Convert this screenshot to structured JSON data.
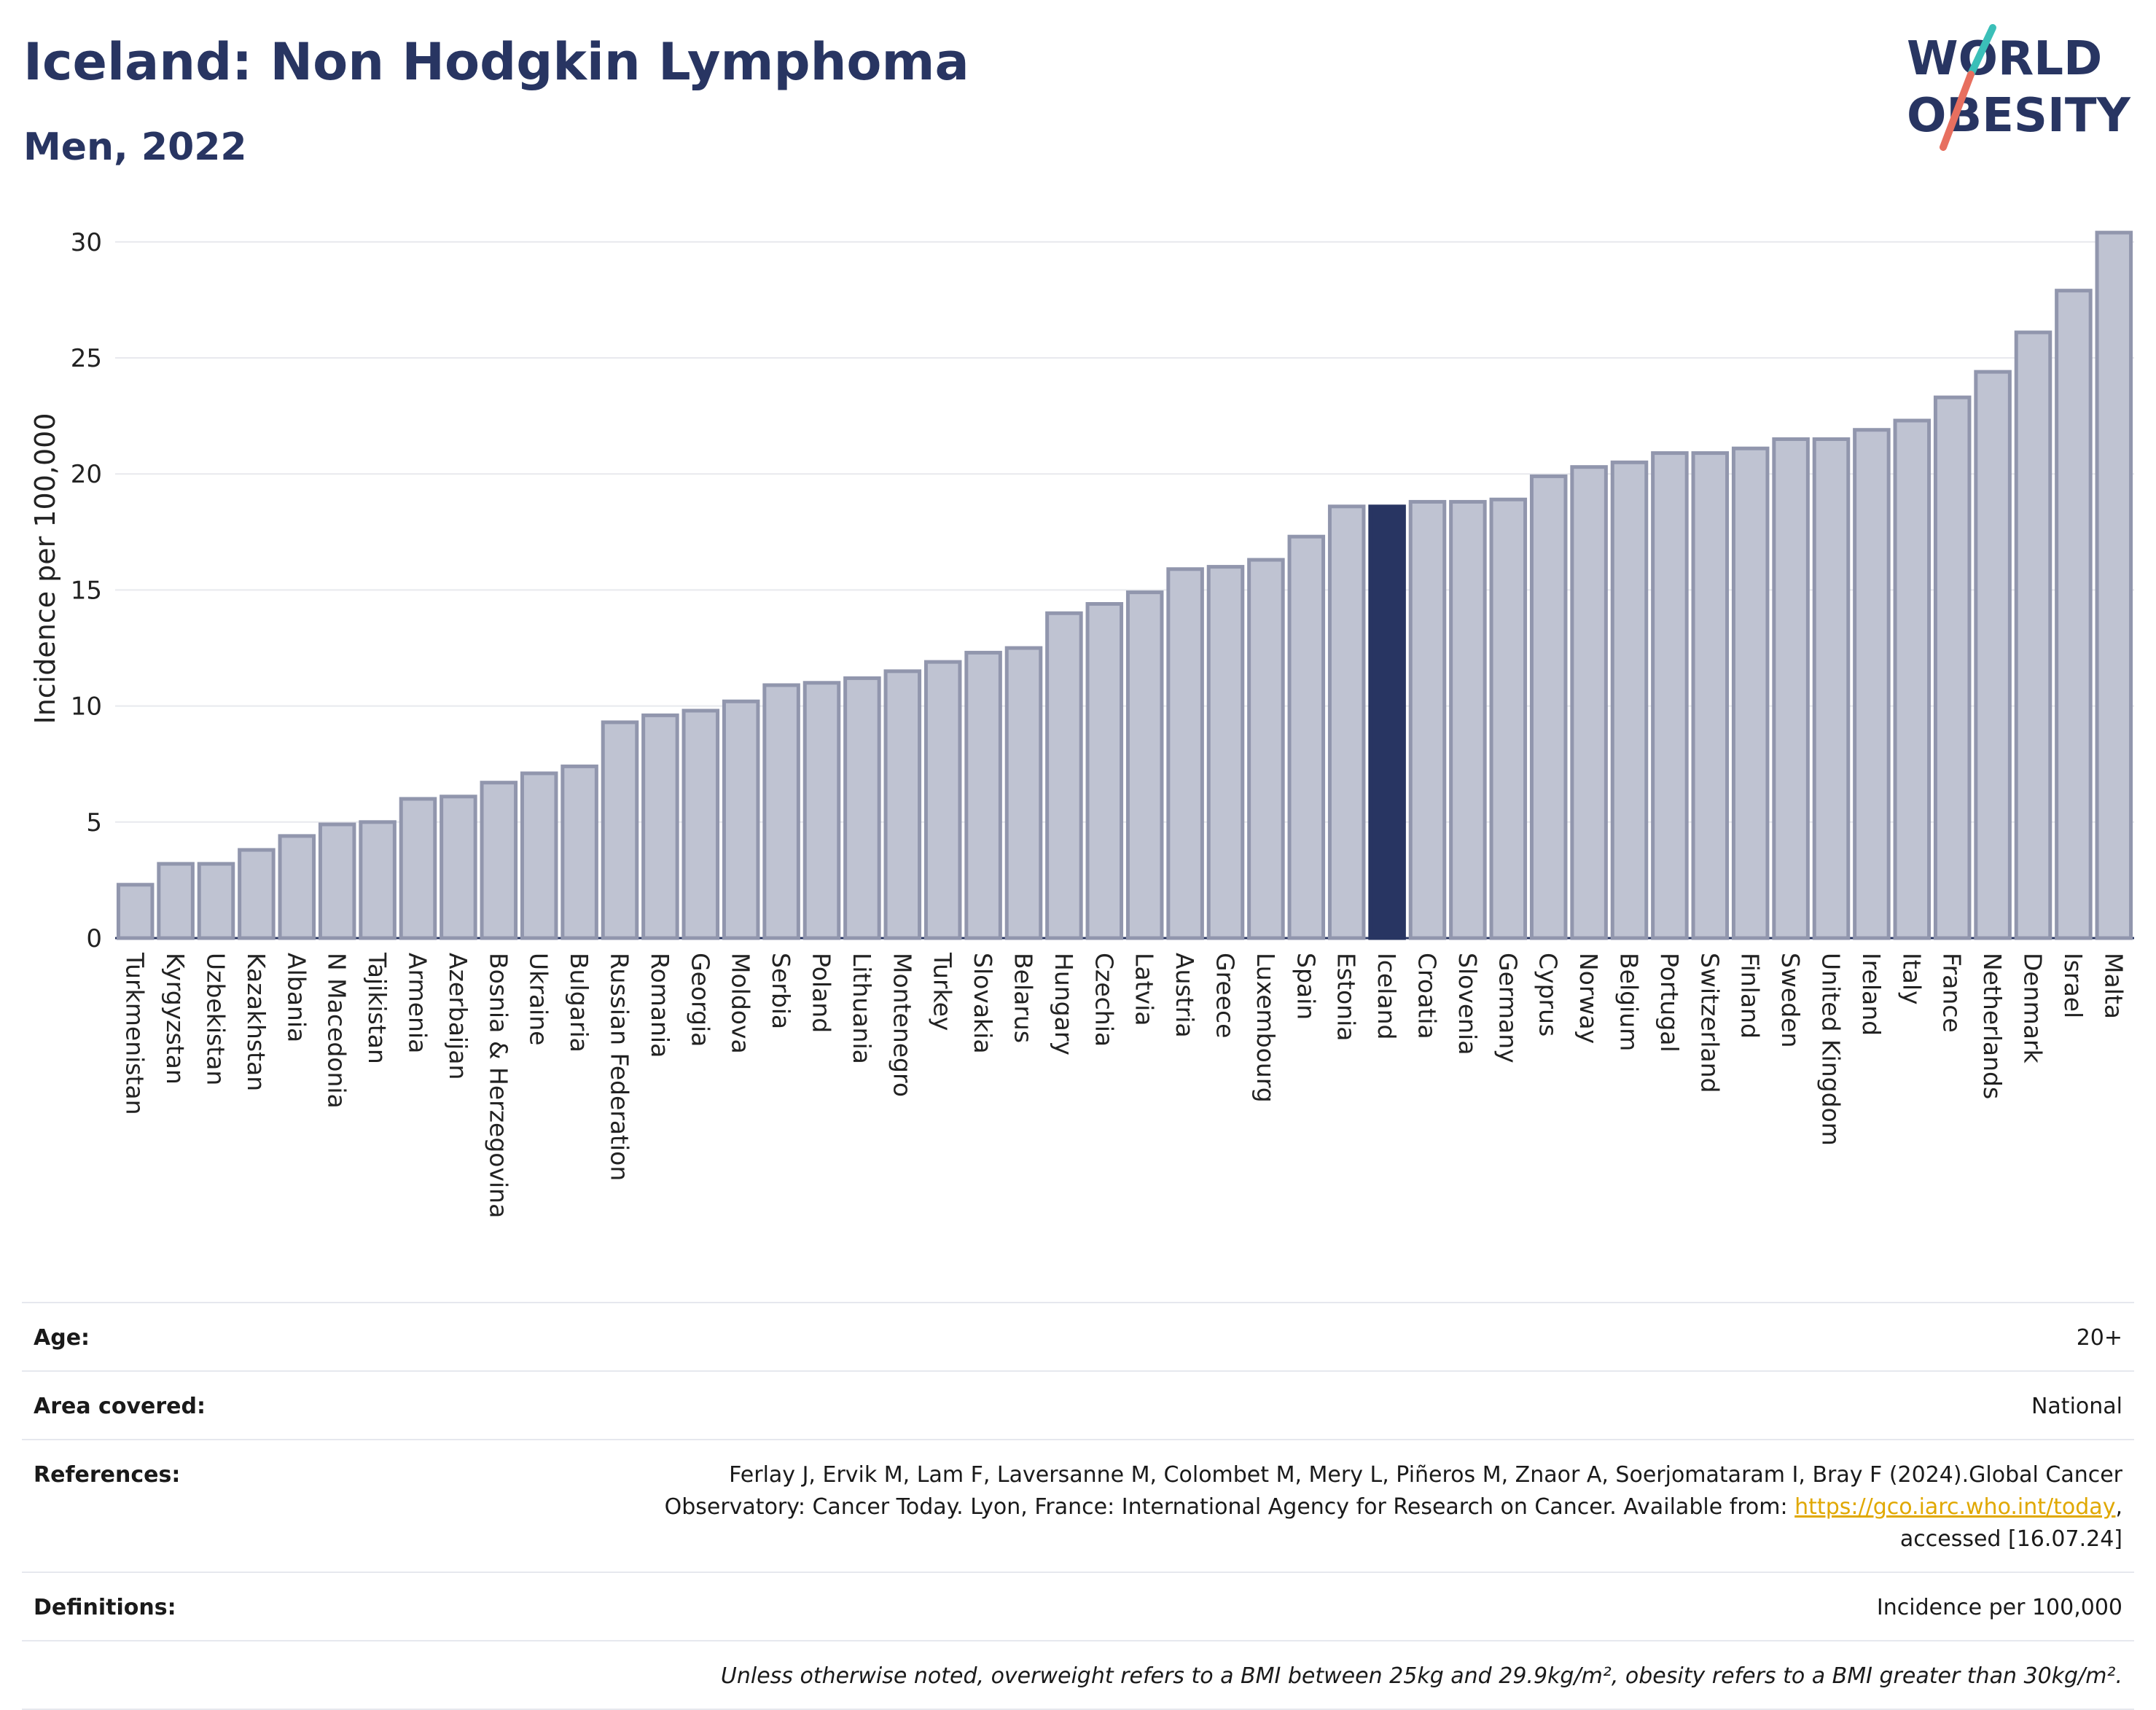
{
  "header": {
    "title": "Iceland: Non Hodgkin Lymphoma",
    "subtitle": "Men, 2022",
    "logo_text_top": "WORLD",
    "logo_text_bottom": "OBESITY"
  },
  "colors": {
    "bar": "#bfc3d2",
    "bar_border": "#9196ad",
    "highlight": "#283562",
    "grid": "#e8e9ee",
    "logo_text": "#283562",
    "logo_slash_top": "#3bbfb8",
    "logo_slash_bottom": "#e76f5f"
  },
  "chart_data": {
    "type": "bar",
    "ylabel": "Incidence per 100,000",
    "ylim": [
      0,
      31
    ],
    "yticks": [
      0,
      5,
      10,
      15,
      20,
      25,
      30
    ],
    "highlight": "Iceland",
    "grid": true,
    "categories": [
      "Turkmenistan",
      "Kyrgyzstan",
      "Uzbekistan",
      "Kazakhstan",
      "Albania",
      "N Macedonia",
      "Tajikistan",
      "Armenia",
      "Azerbaijan",
      "Bosnia & Herzegovina",
      "Ukraine",
      "Bulgaria",
      "Russian Federation",
      "Romania",
      "Georgia",
      "Moldova",
      "Serbia",
      "Poland",
      "Lithuania",
      "Montenegro",
      "Turkey",
      "Slovakia",
      "Belarus",
      "Hungary",
      "Czechia",
      "Latvia",
      "Austria",
      "Greece",
      "Luxembourg",
      "Spain",
      "Estonia",
      "Iceland",
      "Croatia",
      "Slovenia",
      "Germany",
      "Cyprus",
      "Norway",
      "Belgium",
      "Portugal",
      "Switzerland",
      "Finland",
      "Sweden",
      "United Kingdom",
      "Ireland",
      "Italy",
      "France",
      "Netherlands",
      "Denmark",
      "Israel",
      "Malta"
    ],
    "values": [
      2.3,
      3.2,
      3.2,
      3.8,
      4.4,
      4.9,
      5.0,
      6.0,
      6.1,
      6.7,
      7.1,
      7.4,
      9.3,
      9.6,
      9.8,
      10.2,
      10.9,
      11.0,
      11.2,
      11.5,
      11.9,
      12.3,
      12.5,
      14.0,
      14.4,
      14.9,
      15.9,
      16.0,
      16.3,
      17.3,
      18.6,
      18.6,
      18.8,
      18.8,
      18.9,
      19.9,
      20.3,
      20.5,
      20.9,
      20.9,
      21.1,
      21.5,
      21.5,
      21.9,
      22.3,
      23.3,
      24.4,
      26.1,
      27.9,
      30.4
    ]
  },
  "meta": {
    "age_label": "Age:",
    "age_value": "20+",
    "area_label": "Area covered:",
    "area_value": "National",
    "references_label": "References:",
    "references_line1": "Ferlay J, Ervik M, Lam F, Laversanne M, Colombet M, Mery L, Piñeros M, Znaor A, Soerjomataram I, Bray F (2024).Global Cancer",
    "references_line2": "Observatory: Cancer Today. Lyon, France: International Agency for Research on Cancer. Available from: ",
    "references_link": "https://gco.iarc.who.int/today",
    "references_line3": "accessed [16.07.24]",
    "definitions_label": "Definitions:",
    "definitions_value": "Incidence per 100,000",
    "note": "Unless otherwise noted, overweight refers to a BMI between 25kg and 29.9kg/m², obesity refers to a BMI greater than 30kg/m²."
  }
}
